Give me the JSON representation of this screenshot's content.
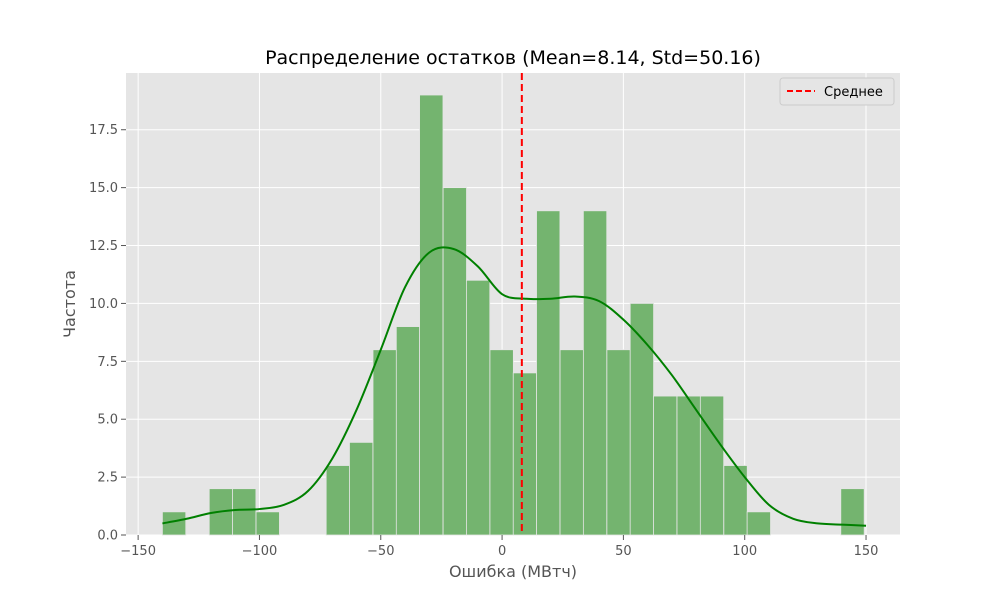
{
  "chart_data": {
    "type": "bar",
    "title": "Распределение остатков (Mean=8.14, Std=50.16)",
    "xlabel": "Ошибка (МВтч)",
    "ylabel": "Частота",
    "xlim": [
      -155,
      164
    ],
    "ylim": [
      0,
      19.95
    ],
    "grid": true,
    "legend_position": "top-right",
    "x_ticks": [
      -150,
      -100,
      -50,
      0,
      50,
      100,
      150
    ],
    "x_tick_labels": [
      "−150",
      "−100",
      "−50",
      "0",
      "50",
      "100",
      "150"
    ],
    "y_ticks": [
      0,
      2.5,
      5,
      7.5,
      10,
      12.5,
      15,
      17.5
    ],
    "y_tick_labels": [
      "0.0",
      "2.5",
      "5.0",
      "7.5",
      "10.0",
      "12.5",
      "15.0",
      "17.5"
    ],
    "bin_width": 9.64,
    "bins": [
      {
        "x0": -140.0,
        "count": 1
      },
      {
        "x0": -130.4,
        "count": 0
      },
      {
        "x0": -120.7,
        "count": 2
      },
      {
        "x0": -111.1,
        "count": 2
      },
      {
        "x0": -101.4,
        "count": 1
      },
      {
        "x0": -91.8,
        "count": 0
      },
      {
        "x0": -82.2,
        "count": 0
      },
      {
        "x0": -72.5,
        "count": 3
      },
      {
        "x0": -62.9,
        "count": 4
      },
      {
        "x0": -53.2,
        "count": 8
      },
      {
        "x0": -43.6,
        "count": 9
      },
      {
        "x0": -34.0,
        "count": 19
      },
      {
        "x0": -24.3,
        "count": 15
      },
      {
        "x0": -14.7,
        "count": 11
      },
      {
        "x0": -5.0,
        "count": 8
      },
      {
        "x0": 4.6,
        "count": 7
      },
      {
        "x0": 14.2,
        "count": 14
      },
      {
        "x0": 23.9,
        "count": 8
      },
      {
        "x0": 33.5,
        "count": 14
      },
      {
        "x0": 43.2,
        "count": 8
      },
      {
        "x0": 52.8,
        "count": 10
      },
      {
        "x0": 62.4,
        "count": 6
      },
      {
        "x0": 72.1,
        "count": 6
      },
      {
        "x0": 81.7,
        "count": 6
      },
      {
        "x0": 91.4,
        "count": 3
      },
      {
        "x0": 101.0,
        "count": 1
      },
      {
        "x0": 110.6,
        "count": 0
      },
      {
        "x0": 120.3,
        "count": 0
      },
      {
        "x0": 129.9,
        "count": 0
      },
      {
        "x0": 139.6,
        "count": 2
      }
    ],
    "kde": {
      "x": [
        -140,
        -130,
        -120,
        -110,
        -100,
        -90,
        -80,
        -70,
        -60,
        -50,
        -40,
        -30,
        -20,
        -10,
        0,
        10,
        20,
        30,
        40,
        50,
        60,
        70,
        80,
        90,
        100,
        110,
        120,
        130,
        140,
        150
      ],
      "y": [
        0.5,
        0.7,
        0.95,
        1.08,
        1.12,
        1.3,
        1.9,
        3.3,
        5.4,
        8.0,
        10.7,
        12.2,
        12.35,
        11.6,
        10.4,
        10.2,
        10.2,
        10.3,
        10.1,
        9.3,
        8.2,
        6.9,
        5.4,
        3.9,
        2.5,
        1.3,
        0.7,
        0.5,
        0.45,
        0.4
      ]
    },
    "mean": 8.14,
    "legend": [
      {
        "label": "Среднее",
        "style": "dashed",
        "color": "#ff0000"
      }
    ],
    "colors": {
      "bar_fill": "#74b46f",
      "bar_stroke": "#e5e5e5",
      "kde_line": "#008000",
      "mean_line": "#ff0000",
      "plot_bg": "#e5e5e5",
      "grid": "#ffffff",
      "text": "#555555",
      "title": "#000000"
    }
  }
}
